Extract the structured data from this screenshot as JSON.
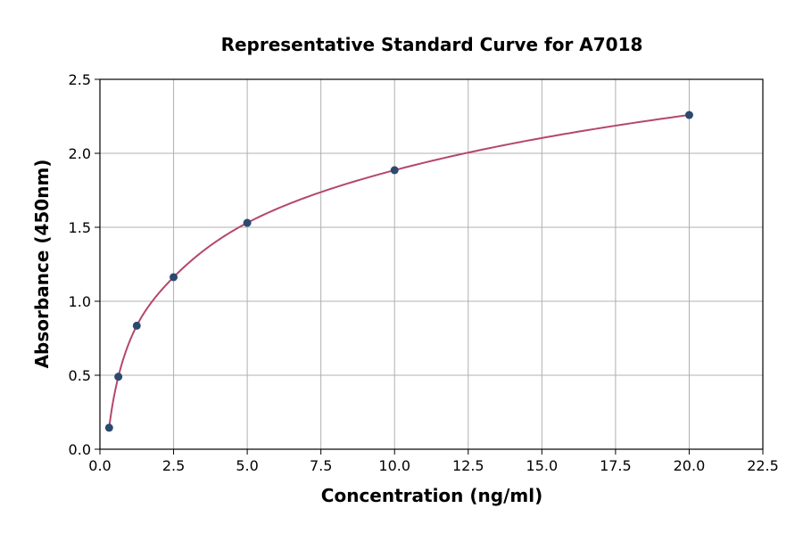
{
  "chart_data": {
    "type": "scatter",
    "title": "Representative Standard Curve for A7018",
    "xlabel": "Concentration (ng/ml)",
    "ylabel": "Absorbance (450nm)",
    "xlim": [
      0,
      22.5
    ],
    "ylim": [
      0,
      2.5
    ],
    "xticks": [
      "0.0",
      "2.5",
      "5.0",
      "7.5",
      "10.0",
      "12.5",
      "15.0",
      "17.5",
      "20.0",
      "22.5"
    ],
    "yticks": [
      "0.0",
      "0.5",
      "1.0",
      "1.5",
      "2.0",
      "2.5"
    ],
    "grid": true,
    "points": {
      "x": [
        0.3125,
        0.625,
        1.25,
        2.5,
        5,
        10,
        20
      ],
      "y": [
        0.145,
        0.49,
        0.835,
        1.163,
        1.53,
        1.886,
        2.259
      ]
    },
    "fit_curve": true,
    "colors": {
      "points": "#2c4a6e",
      "curve": "#b5476b",
      "grid": "#b0b0b0"
    }
  }
}
